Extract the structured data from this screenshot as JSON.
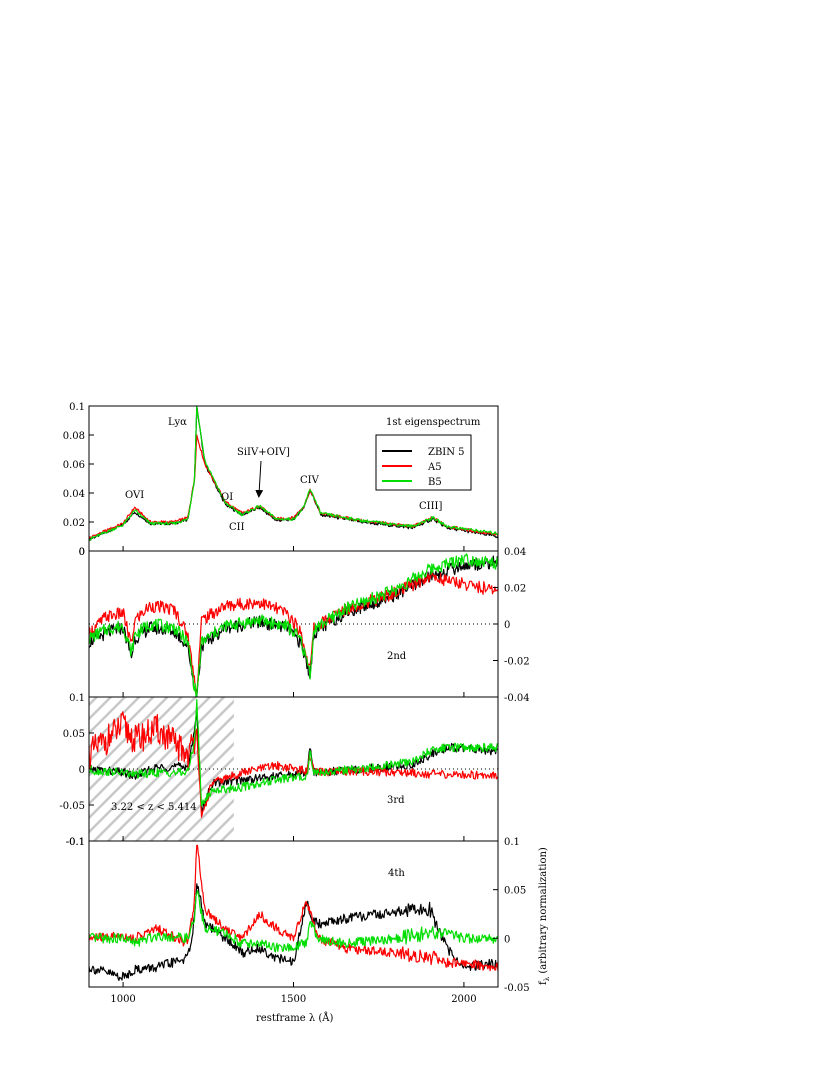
{
  "figure": {
    "x_axis_label": "restframe λ (Å)",
    "y_axis_label": "f",
    "y_axis_label_subscript": "λ",
    "y_axis_label_rest": " (arbitrary normalization)",
    "x_ticks": [
      "1000",
      "1500",
      "2000"
    ],
    "x_tick_values": [
      1000,
      1500,
      2000
    ],
    "legend": [
      {
        "label": "ZBIN 5",
        "color": "#000000"
      },
      {
        "label": "A5",
        "color": "#ff0000"
      },
      {
        "label": "B5",
        "color": "#00dd00"
      }
    ],
    "redshift_note": "3.22 < z < 5.414"
  },
  "chart_data": [
    {
      "type": "line",
      "panel_label": "1st eigenspectrum",
      "xlim": [
        900,
        2100
      ],
      "ylim": [
        0,
        0.1
      ],
      "left_ticks": [
        "0",
        "0.02",
        "0.04",
        "0.06",
        "0.08",
        "0.1"
      ],
      "left_tick_values": [
        0,
        0.02,
        0.04,
        0.06,
        0.08,
        0.1
      ],
      "right_ticks": [],
      "right_tick_values": [],
      "annotations": [
        {
          "text": "Lyα",
          "x": 1216
        },
        {
          "text": "OVI",
          "x": 1034
        },
        {
          "text": "OI",
          "x": 1304
        },
        {
          "text": "CII",
          "x": 1335
        },
        {
          "text": "SiIV+OIV]",
          "x": 1400
        },
        {
          "text": "CIV",
          "x": 1549
        },
        {
          "text": "CIII]",
          "x": 1909
        }
      ],
      "series": [
        {
          "name": "ZBIN 5",
          "color": "#000000",
          "x": [
            900,
            950,
            1000,
            1034,
            1080,
            1150,
            1190,
            1210,
            1216,
            1240,
            1300,
            1350,
            1400,
            1450,
            1500,
            1530,
            1549,
            1580,
            1700,
            1850,
            1909,
            1950,
            2100
          ],
          "y": [
            0.008,
            0.013,
            0.018,
            0.027,
            0.019,
            0.019,
            0.022,
            0.05,
            0.1,
            0.06,
            0.032,
            0.025,
            0.03,
            0.021,
            0.022,
            0.03,
            0.042,
            0.025,
            0.02,
            0.016,
            0.022,
            0.016,
            0.01
          ]
        },
        {
          "name": "A5",
          "color": "#ff0000",
          "x": [
            900,
            950,
            1000,
            1034,
            1080,
            1150,
            1190,
            1210,
            1216,
            1240,
            1300,
            1350,
            1400,
            1450,
            1500,
            1530,
            1549,
            1580,
            1700,
            1850,
            1909,
            1950,
            2100
          ],
          "y": [
            0.009,
            0.014,
            0.019,
            0.03,
            0.02,
            0.02,
            0.023,
            0.05,
            0.08,
            0.06,
            0.034,
            0.026,
            0.031,
            0.022,
            0.023,
            0.031,
            0.042,
            0.026,
            0.021,
            0.017,
            0.023,
            0.017,
            0.011
          ]
        },
        {
          "name": "B5",
          "color": "#00dd00",
          "x": [
            900,
            950,
            1000,
            1034,
            1080,
            1150,
            1190,
            1210,
            1216,
            1240,
            1300,
            1350,
            1400,
            1450,
            1500,
            1530,
            1549,
            1580,
            1700,
            1850,
            1909,
            1950,
            2100
          ],
          "y": [
            0.008,
            0.013,
            0.018,
            0.028,
            0.019,
            0.019,
            0.022,
            0.05,
            0.1,
            0.062,
            0.033,
            0.025,
            0.031,
            0.022,
            0.022,
            0.03,
            0.043,
            0.026,
            0.021,
            0.017,
            0.023,
            0.017,
            0.012
          ]
        }
      ]
    },
    {
      "type": "line",
      "panel_label": "2nd",
      "xlim": [
        900,
        2100
      ],
      "ylim": [
        -0.04,
        0.04
      ],
      "left_ticks": [
        "0"
      ],
      "left_tick_values": [
        0.04
      ],
      "right_ticks": [
        "0.04",
        "0.02",
        "0",
        "-0.02"
      ],
      "right_tick_values": [
        0.04,
        0.02,
        0,
        -0.02
      ],
      "zero_line": true,
      "series": [
        {
          "name": "ZBIN 5",
          "color": "#000000",
          "x": [
            900,
            950,
            1000,
            1025,
            1034,
            1080,
            1150,
            1190,
            1205,
            1216,
            1230,
            1300,
            1400,
            1480,
            1520,
            1549,
            1560,
            1650,
            1800,
            1900,
            2000,
            2100
          ],
          "y": [
            -0.01,
            -0.005,
            -0.002,
            -0.018,
            -0.008,
            -0.002,
            -0.004,
            -0.012,
            -0.03,
            -0.04,
            -0.012,
            -0.002,
            0.001,
            -0.002,
            -0.01,
            -0.028,
            -0.005,
            0.006,
            0.016,
            0.026,
            0.032,
            0.034
          ]
        },
        {
          "name": "A5",
          "color": "#ff0000",
          "x": [
            900,
            950,
            1000,
            1025,
            1034,
            1080,
            1150,
            1190,
            1205,
            1216,
            1230,
            1300,
            1400,
            1480,
            1520,
            1549,
            1560,
            1650,
            1800,
            1900,
            2000,
            2100
          ],
          "y": [
            -0.005,
            0.004,
            0.006,
            -0.012,
            0.002,
            0.01,
            0.008,
            -0.006,
            -0.025,
            -0.038,
            0.002,
            0.01,
            0.012,
            0.006,
            -0.004,
            -0.025,
            -0.002,
            0.008,
            0.017,
            0.026,
            0.022,
            0.018
          ]
        },
        {
          "name": "B5",
          "color": "#00dd00",
          "x": [
            900,
            950,
            1000,
            1025,
            1034,
            1080,
            1150,
            1190,
            1205,
            1216,
            1230,
            1300,
            1400,
            1480,
            1520,
            1549,
            1560,
            1650,
            1800,
            1900,
            2000,
            2100
          ],
          "y": [
            -0.008,
            -0.003,
            -0.001,
            -0.016,
            -0.006,
            0.0,
            -0.002,
            -0.01,
            -0.03,
            -0.04,
            -0.01,
            -0.001,
            0.002,
            -0.001,
            -0.008,
            -0.027,
            -0.003,
            0.008,
            0.019,
            0.03,
            0.036,
            0.033
          ]
        }
      ]
    },
    {
      "type": "line",
      "panel_label": "3rd",
      "xlim": [
        900,
        2100
      ],
      "ylim": [
        -0.1,
        0.1
      ],
      "left_ticks": [
        "0.1",
        "0.05",
        "0",
        "-0.05",
        "-0.1"
      ],
      "left_tick_values": [
        0.1,
        0.05,
        0,
        -0.05,
        -0.1
      ],
      "right_ticks": [
        "-0.04"
      ],
      "right_tick_values": [
        0.1
      ],
      "zero_line": true,
      "hatched_region": [
        900,
        1325
      ],
      "series": [
        {
          "name": "ZBIN 5",
          "color": "#000000",
          "x": [
            900,
            1000,
            1034,
            1100,
            1190,
            1210,
            1216,
            1230,
            1260,
            1350,
            1450,
            1540,
            1549,
            1560,
            1700,
            1850,
            1900,
            1950,
            2100
          ],
          "y": [
            0.0,
            -0.005,
            -0.01,
            0.002,
            0.004,
            0.05,
            0.09,
            -0.06,
            -0.02,
            -0.015,
            -0.01,
            -0.005,
            0.03,
            -0.005,
            0.0,
            0.005,
            0.02,
            0.03,
            0.025
          ]
        },
        {
          "name": "A5",
          "color": "#ff0000",
          "x": [
            900,
            1000,
            1034,
            1100,
            1190,
            1210,
            1216,
            1230,
            1260,
            1350,
            1450,
            1540,
            1549,
            1560,
            1700,
            1850,
            1900,
            1950,
            2100
          ],
          "y": [
            0.02,
            0.06,
            0.04,
            0.055,
            0.02,
            0.04,
            0.06,
            -0.07,
            -0.02,
            -0.005,
            0.005,
            -0.003,
            0.02,
            -0.005,
            -0.003,
            -0.005,
            -0.007,
            -0.008,
            -0.008
          ]
        },
        {
          "name": "B5",
          "color": "#00dd00",
          "x": [
            900,
            1000,
            1034,
            1100,
            1190,
            1210,
            1216,
            1230,
            1260,
            1350,
            1450,
            1540,
            1549,
            1560,
            1700,
            1850,
            1900,
            1950,
            2100
          ],
          "y": [
            -0.002,
            -0.005,
            -0.008,
            -0.005,
            -0.005,
            0.04,
            0.1,
            -0.05,
            -0.03,
            -0.025,
            -0.015,
            -0.01,
            0.025,
            -0.005,
            0.0,
            0.01,
            0.025,
            0.03,
            0.03
          ]
        }
      ]
    },
    {
      "type": "line",
      "panel_label": "4th",
      "xlim": [
        900,
        2100
      ],
      "ylim": [
        -0.05,
        0.1
      ],
      "left_ticks": [
        "-0.1"
      ],
      "left_tick_values": [
        0.1
      ],
      "right_ticks": [
        "0.1",
        "0.05",
        "0",
        "-0.05"
      ],
      "right_tick_values": [
        0.1,
        0.05,
        0,
        -0.05
      ],
      "series": [
        {
          "name": "ZBIN 5",
          "color": "#000000",
          "x": [
            900,
            1000,
            1034,
            1100,
            1190,
            1210,
            1216,
            1240,
            1300,
            1350,
            1400,
            1450,
            1500,
            1540,
            1549,
            1570,
            1650,
            1800,
            1900,
            1950,
            2000,
            2100
          ],
          "y": [
            -0.03,
            -0.04,
            -0.032,
            -0.03,
            -0.02,
            0.02,
            0.06,
            0.015,
            0.0,
            -0.015,
            -0.01,
            -0.02,
            -0.025,
            0.04,
            0.02,
            0.015,
            0.02,
            0.027,
            0.03,
            -0.01,
            -0.03,
            -0.025
          ]
        },
        {
          "name": "A5",
          "color": "#ff0000",
          "x": [
            900,
            1000,
            1034,
            1100,
            1190,
            1210,
            1216,
            1240,
            1300,
            1350,
            1400,
            1450,
            1500,
            1540,
            1549,
            1570,
            1650,
            1800,
            1900,
            1950,
            2000,
            2100
          ],
          "y": [
            0.0,
            0.003,
            0.0,
            0.01,
            -0.005,
            0.04,
            0.1,
            0.03,
            0.01,
            0.0,
            0.025,
            0.01,
            0.0,
            0.04,
            0.025,
            0.0,
            -0.01,
            -0.015,
            -0.02,
            -0.025,
            -0.025,
            -0.03
          ]
        },
        {
          "name": "B5",
          "color": "#00dd00",
          "x": [
            900,
            1000,
            1034,
            1100,
            1190,
            1210,
            1216,
            1240,
            1300,
            1350,
            1400,
            1450,
            1500,
            1540,
            1549,
            1570,
            1650,
            1800,
            1900,
            1950,
            2000,
            2100
          ],
          "y": [
            0.0,
            0.0,
            -0.005,
            0.003,
            0.0,
            0.02,
            0.05,
            0.01,
            0.005,
            -0.005,
            -0.005,
            -0.01,
            -0.01,
            -0.003,
            0.02,
            0.0,
            -0.005,
            0.0,
            0.005,
            0.005,
            0.0,
            0.0
          ]
        }
      ]
    }
  ]
}
